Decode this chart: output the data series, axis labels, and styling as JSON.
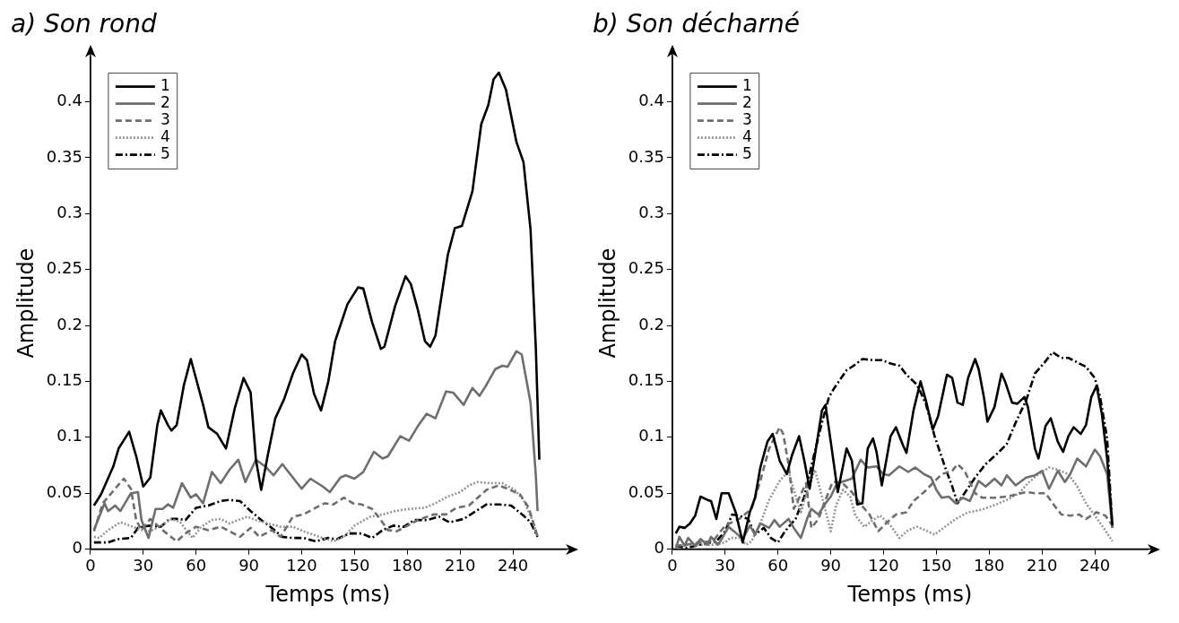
{
  "chart_data": [
    {
      "type": "line",
      "title": "a) Son rond",
      "xlabel": "Temps (ms)",
      "ylabel": "Amplitude",
      "xlim": [
        0,
        270
      ],
      "ylim": [
        0,
        0.44
      ],
      "xticks": [
        0,
        30,
        60,
        90,
        120,
        150,
        180,
        210,
        240
      ],
      "yticks": [
        0,
        0.05,
        0.1,
        0.15,
        0.2,
        0.25,
        0.3,
        0.35,
        0.4
      ],
      "legend": "top left",
      "grid": false,
      "marker": "none",
      "series": [
        {
          "name": "1",
          "color": "#000000",
          "line_style": "solid",
          "x": [
            2,
            6,
            13,
            16,
            22,
            26,
            30,
            34,
            38,
            40,
            44,
            46,
            49,
            53,
            57,
            64,
            67,
            72,
            77,
            82,
            87,
            91,
            94,
            97,
            101,
            105,
            110,
            115,
            120,
            123,
            127,
            131,
            135,
            139,
            146,
            152,
            155,
            160,
            165,
            167,
            173,
            179,
            182,
            186,
            190,
            193,
            196,
            203,
            207,
            211,
            217,
            222,
            226,
            229,
            232,
            236,
            242,
            246,
            250,
            253,
            255
          ],
          "values": [
            0.039,
            0.049,
            0.074,
            0.09,
            0.105,
            0.083,
            0.056,
            0.064,
            0.111,
            0.124,
            0.111,
            0.106,
            0.111,
            0.146,
            0.17,
            0.129,
            0.109,
            0.103,
            0.09,
            0.126,
            0.153,
            0.14,
            0.08,
            0.053,
            0.086,
            0.117,
            0.134,
            0.157,
            0.174,
            0.169,
            0.139,
            0.124,
            0.149,
            0.186,
            0.219,
            0.234,
            0.233,
            0.203,
            0.179,
            0.181,
            0.217,
            0.244,
            0.237,
            0.214,
            0.186,
            0.181,
            0.191,
            0.263,
            0.287,
            0.289,
            0.32,
            0.38,
            0.397,
            0.42,
            0.426,
            0.411,
            0.364,
            0.346,
            0.286,
            0.18,
            0.08
          ]
        },
        {
          "name": "2",
          "color": "#6e6e6e",
          "line_style": "solid",
          "x": [
            2,
            8,
            10,
            14,
            17,
            23,
            27,
            29,
            33,
            37,
            41,
            44,
            47,
            52,
            57,
            60,
            64,
            69,
            74,
            79,
            84,
            88,
            94,
            100,
            104,
            109,
            114,
            120,
            125,
            132,
            136,
            142,
            145,
            150,
            155,
            161,
            166,
            169,
            176,
            181,
            186,
            191,
            196,
            202,
            206,
            212,
            217,
            221,
            225,
            230,
            234,
            237,
            242,
            245,
            250,
            253,
            254
          ],
          "values": [
            0.017,
            0.041,
            0.034,
            0.039,
            0.034,
            0.05,
            0.051,
            0.026,
            0.01,
            0.036,
            0.036,
            0.04,
            0.037,
            0.059,
            0.046,
            0.049,
            0.041,
            0.069,
            0.059,
            0.071,
            0.08,
            0.06,
            0.08,
            0.073,
            0.066,
            0.076,
            0.066,
            0.054,
            0.063,
            0.056,
            0.051,
            0.064,
            0.066,
            0.063,
            0.069,
            0.087,
            0.081,
            0.083,
            0.101,
            0.097,
            0.11,
            0.121,
            0.117,
            0.141,
            0.14,
            0.129,
            0.144,
            0.137,
            0.147,
            0.161,
            0.164,
            0.163,
            0.177,
            0.174,
            0.131,
            0.066,
            0.034
          ]
        },
        {
          "name": "3",
          "color": "#6e6e6e",
          "line_style": "dashed",
          "x": [
            2,
            7,
            14,
            19,
            23,
            26,
            29,
            34,
            41,
            49,
            54,
            60,
            67,
            74,
            79,
            85,
            91,
            96,
            103,
            108,
            115,
            121,
            128,
            133,
            138,
            144,
            149,
            154,
            160,
            165,
            169,
            174,
            179,
            186,
            195,
            202,
            208,
            215,
            220,
            225,
            232,
            237,
            244,
            249,
            254
          ],
          "values": [
            0.016,
            0.041,
            0.054,
            0.063,
            0.054,
            0.026,
            0.017,
            0.027,
            0.017,
            0.007,
            0.014,
            0.02,
            0.017,
            0.02,
            0.016,
            0.011,
            0.019,
            0.011,
            0.017,
            0.011,
            0.029,
            0.031,
            0.037,
            0.041,
            0.04,
            0.046,
            0.041,
            0.04,
            0.036,
            0.026,
            0.017,
            0.016,
            0.02,
            0.026,
            0.031,
            0.031,
            0.037,
            0.039,
            0.046,
            0.053,
            0.057,
            0.054,
            0.049,
            0.037,
            0.011
          ]
        },
        {
          "name": "4",
          "color": "#959595",
          "line_style": "dotted",
          "x": [
            2,
            5,
            10,
            17,
            24,
            29,
            34,
            40,
            46,
            51,
            55,
            58,
            63,
            69,
            74,
            79,
            84,
            89,
            94,
            101,
            108,
            115,
            121,
            130,
            138,
            144,
            150,
            159,
            166,
            173,
            181,
            190,
            196,
            203,
            210,
            215,
            220,
            227,
            234,
            241,
            246,
            251,
            254
          ],
          "values": [
            0.011,
            0.01,
            0.017,
            0.024,
            0.02,
            0.017,
            0.016,
            0.021,
            0.027,
            0.024,
            0.016,
            0.01,
            0.02,
            0.026,
            0.027,
            0.023,
            0.026,
            0.029,
            0.026,
            0.023,
            0.02,
            0.02,
            0.016,
            0.011,
            0.007,
            0.011,
            0.021,
            0.029,
            0.031,
            0.034,
            0.036,
            0.037,
            0.041,
            0.047,
            0.051,
            0.057,
            0.06,
            0.059,
            0.059,
            0.053,
            0.044,
            0.026,
            0.011
          ]
        },
        {
          "name": "5",
          "color": "#000000",
          "line_style": "dashdot",
          "x": [
            2,
            10,
            16,
            23,
            27,
            33,
            40,
            45,
            50,
            54,
            60,
            67,
            74,
            79,
            85,
            91,
            97,
            103,
            109,
            115,
            121,
            128,
            135,
            140,
            147,
            154,
            160,
            166,
            172,
            178,
            184,
            191,
            198,
            204,
            212,
            218,
            225,
            232,
            239,
            246,
            250,
            254
          ],
          "values": [
            0.006,
            0.006,
            0.009,
            0.01,
            0.019,
            0.021,
            0.02,
            0.027,
            0.027,
            0.026,
            0.037,
            0.039,
            0.043,
            0.044,
            0.043,
            0.034,
            0.026,
            0.019,
            0.011,
            0.01,
            0.01,
            0.007,
            0.01,
            0.009,
            0.014,
            0.014,
            0.01,
            0.017,
            0.021,
            0.02,
            0.026,
            0.026,
            0.029,
            0.024,
            0.027,
            0.033,
            0.04,
            0.04,
            0.039,
            0.03,
            0.024,
            0.011
          ]
        }
      ]
    },
    {
      "type": "line",
      "title": "b) Son décharné",
      "xlabel": "Temps (ms)",
      "ylabel": "Amplitude",
      "xlim": [
        0,
        270
      ],
      "ylim": [
        0,
        0.44
      ],
      "xticks": [
        0,
        30,
        60,
        90,
        120,
        150,
        180,
        210,
        240
      ],
      "yticks": [
        0,
        0.05,
        0.1,
        0.15,
        0.2,
        0.25,
        0.3,
        0.35,
        0.4
      ],
      "legend": "top left",
      "grid": false,
      "marker": "none",
      "series": [
        {
          "name": "1",
          "color": "#000000",
          "line_style": "solid",
          "x": [
            2,
            4,
            7,
            10,
            13,
            16,
            20,
            22,
            25,
            28,
            32,
            36,
            40,
            44,
            47,
            50,
            54,
            57,
            61,
            65,
            68,
            72,
            75,
            78,
            81,
            85,
            87,
            90,
            94,
            96,
            99,
            102,
            105,
            108,
            111,
            114,
            116,
            119,
            124,
            127,
            131,
            133,
            137,
            141,
            144,
            148,
            151,
            156,
            159,
            162,
            165,
            168,
            172,
            174,
            177,
            179,
            183,
            187,
            189,
            193,
            196,
            200,
            202,
            206,
            208,
            212,
            215,
            219,
            222,
            225,
            228,
            232,
            235,
            238,
            241,
            244,
            247,
            250
          ],
          "values": [
            0.014,
            0.02,
            0.019,
            0.023,
            0.03,
            0.047,
            0.044,
            0.043,
            0.027,
            0.05,
            0.05,
            0.033,
            0.006,
            0.033,
            0.046,
            0.073,
            0.096,
            0.103,
            0.079,
            0.067,
            0.084,
            0.101,
            0.079,
            0.054,
            0.084,
            0.124,
            0.129,
            0.096,
            0.051,
            0.067,
            0.09,
            0.079,
            0.04,
            0.041,
            0.09,
            0.099,
            0.087,
            0.057,
            0.101,
            0.109,
            0.093,
            0.086,
            0.124,
            0.15,
            0.133,
            0.107,
            0.119,
            0.156,
            0.153,
            0.131,
            0.129,
            0.153,
            0.17,
            0.161,
            0.136,
            0.114,
            0.127,
            0.157,
            0.15,
            0.131,
            0.13,
            0.136,
            0.127,
            0.09,
            0.081,
            0.11,
            0.117,
            0.096,
            0.087,
            0.101,
            0.109,
            0.103,
            0.111,
            0.136,
            0.146,
            0.121,
            0.081,
            0.021
          ]
        },
        {
          "name": "2",
          "color": "#6e6e6e",
          "line_style": "solid",
          "x": [
            2,
            4,
            7,
            9,
            13,
            16,
            20,
            22,
            26,
            28,
            32,
            35,
            40,
            44,
            47,
            50,
            55,
            58,
            61,
            66,
            69,
            73,
            77,
            79,
            83,
            87,
            90,
            93,
            96,
            102,
            107,
            111,
            116,
            120,
            123,
            129,
            134,
            138,
            143,
            147,
            150,
            153,
            157,
            161,
            165,
            169,
            174,
            178,
            183,
            187,
            190,
            195,
            201,
            206,
            210,
            214,
            219,
            223,
            226,
            230,
            235,
            240,
            243,
            247,
            250
          ],
          "values": [
            0.001,
            0.011,
            0.003,
            0.01,
            0.003,
            0.009,
            0.004,
            0.011,
            0.004,
            0.009,
            0.02,
            0.016,
            0.009,
            0.021,
            0.013,
            0.023,
            0.019,
            0.026,
            0.02,
            0.027,
            0.019,
            0.01,
            0.029,
            0.036,
            0.031,
            0.041,
            0.047,
            0.057,
            0.06,
            0.063,
            0.08,
            0.073,
            0.074,
            0.067,
            0.066,
            0.074,
            0.069,
            0.073,
            0.067,
            0.064,
            0.053,
            0.046,
            0.047,
            0.041,
            0.046,
            0.043,
            0.061,
            0.056,
            0.063,
            0.057,
            0.066,
            0.057,
            0.064,
            0.066,
            0.07,
            0.054,
            0.07,
            0.06,
            0.067,
            0.081,
            0.074,
            0.089,
            0.083,
            0.067,
            0.019
          ]
        },
        {
          "name": "3",
          "color": "#6e6e6e",
          "line_style": "dashed",
          "x": [
            2,
            8,
            16,
            23,
            30,
            38,
            45,
            50,
            55,
            61,
            63,
            66,
            69,
            73,
            76,
            79,
            83,
            87,
            91,
            96,
            102,
            107,
            112,
            117,
            122,
            127,
            133,
            137,
            143,
            148,
            153,
            159,
            162,
            166,
            172,
            176,
            184,
            190,
            201,
            206,
            212,
            217,
            221,
            226,
            231,
            235,
            241,
            246,
            250
          ],
          "values": [
            0.003,
            0.004,
            0.006,
            0.007,
            0.021,
            0.027,
            0.036,
            0.061,
            0.09,
            0.109,
            0.103,
            0.076,
            0.036,
            0.049,
            0.059,
            0.019,
            0.027,
            0.044,
            0.06,
            0.06,
            0.051,
            0.04,
            0.031,
            0.016,
            0.024,
            0.031,
            0.033,
            0.043,
            0.051,
            0.059,
            0.067,
            0.07,
            0.076,
            0.07,
            0.05,
            0.046,
            0.046,
            0.047,
            0.051,
            0.05,
            0.05,
            0.039,
            0.031,
            0.03,
            0.031,
            0.027,
            0.033,
            0.03,
            0.021
          ]
        },
        {
          "name": "4",
          "color": "#959595",
          "line_style": "dotted",
          "x": [
            2,
            9,
            16,
            24,
            30,
            33,
            38,
            42,
            45,
            50,
            55,
            61,
            66,
            69,
            73,
            77,
            81,
            85,
            90,
            93,
            97,
            101,
            104,
            109,
            114,
            118,
            124,
            129,
            134,
            139,
            145,
            149,
            154,
            161,
            168,
            172,
            177,
            184,
            190,
            197,
            202,
            208,
            214,
            219,
            225,
            230,
            235,
            240,
            245,
            250
          ],
          "values": [
            0.003,
            0.004,
            0.004,
            0.004,
            0.006,
            0.01,
            0.01,
            0.004,
            0.007,
            0.023,
            0.044,
            0.061,
            0.07,
            0.053,
            0.033,
            0.054,
            0.071,
            0.047,
            0.016,
            0.039,
            0.053,
            0.047,
            0.03,
            0.02,
            0.026,
            0.03,
            0.021,
            0.01,
            0.017,
            0.02,
            0.016,
            0.013,
            0.019,
            0.027,
            0.033,
            0.034,
            0.036,
            0.04,
            0.044,
            0.05,
            0.059,
            0.067,
            0.073,
            0.071,
            0.067,
            0.056,
            0.041,
            0.03,
            0.019,
            0.007
          ]
        },
        {
          "name": "5",
          "color": "#000000",
          "line_style": "dashdot",
          "x": [
            2,
            8,
            16,
            25,
            30,
            34,
            38,
            43,
            47,
            52,
            56,
            60,
            64,
            70,
            75,
            80,
            85,
            89,
            92,
            99,
            103,
            108,
            114,
            119,
            124,
            129,
            133,
            139,
            144,
            149,
            155,
            159,
            162,
            166,
            172,
            178,
            185,
            190,
            195,
            201,
            206,
            211,
            216,
            221,
            225,
            230,
            235,
            240,
            243,
            247,
            250
          ],
          "values": [
            0.003,
            0.001,
            0.004,
            0.007,
            0.016,
            0.031,
            0.03,
            0.027,
            0.013,
            0.019,
            0.01,
            0.006,
            0.016,
            0.027,
            0.047,
            0.081,
            0.113,
            0.136,
            0.144,
            0.16,
            0.164,
            0.17,
            0.169,
            0.169,
            0.166,
            0.164,
            0.156,
            0.147,
            0.13,
            0.101,
            0.073,
            0.056,
            0.041,
            0.05,
            0.064,
            0.076,
            0.086,
            0.094,
            0.113,
            0.133,
            0.157,
            0.166,
            0.176,
            0.171,
            0.171,
            0.167,
            0.163,
            0.153,
            0.136,
            0.099,
            0.019
          ]
        }
      ]
    }
  ]
}
